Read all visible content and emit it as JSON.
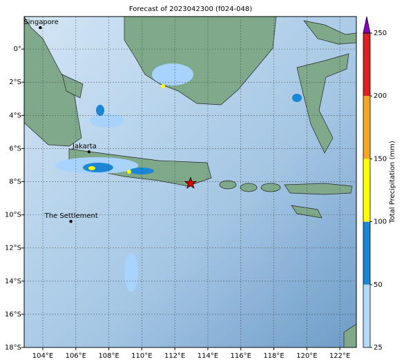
{
  "chart_data": {
    "type": "map",
    "title": "Forecast of 2023042300 (f024-048)",
    "xlim": [
      102.87,
      123.0
    ],
    "ylim": [
      -18,
      1.96
    ],
    "xticks": [
      {
        "value": 104,
        "label": "104°E"
      },
      {
        "value": 106,
        "label": "106°E"
      },
      {
        "value": 108,
        "label": "108°E"
      },
      {
        "value": 110,
        "label": "110°E"
      },
      {
        "value": 112,
        "label": "112°E"
      },
      {
        "value": 114,
        "label": "114°E"
      },
      {
        "value": 116,
        "label": "116°E"
      },
      {
        "value": 118,
        "label": "118°E"
      },
      {
        "value": 120,
        "label": "120°E"
      },
      {
        "value": 122,
        "label": "122°E"
      }
    ],
    "yticks": [
      {
        "value": 0,
        "label": "0°"
      },
      {
        "value": -2,
        "label": "2°S"
      },
      {
        "value": -4,
        "label": "4°S"
      },
      {
        "value": -6,
        "label": "6°S"
      },
      {
        "value": -8,
        "label": "8°S"
      },
      {
        "value": -10,
        "label": "10°S"
      },
      {
        "value": -12,
        "label": "12°S"
      },
      {
        "value": -14,
        "label": "14°S"
      },
      {
        "value": -16,
        "label": "16°S"
      },
      {
        "value": -18,
        "label": "18°S"
      }
    ],
    "grid": true,
    "places": [
      {
        "name": "Singapore",
        "lon": 103.85,
        "lat": 1.29
      },
      {
        "name": "Jakarta",
        "lon": 106.8,
        "lat": -6.2
      },
      {
        "name": "The Settlement",
        "lon": 105.7,
        "lat": -10.4
      }
    ],
    "marker": {
      "lon": 112.95,
      "lat": -8.1,
      "color": "#e00000"
    },
    "colorbar": {
      "label": "Total Precipitation (mm)",
      "ticks": [
        25,
        50,
        100,
        150,
        200,
        250
      ],
      "colors": [
        "#b3d9ff",
        "#1c86d6",
        "#ffff00",
        "#f5a623",
        "#e02020"
      ],
      "extend_color": "#8a00c8"
    }
  }
}
